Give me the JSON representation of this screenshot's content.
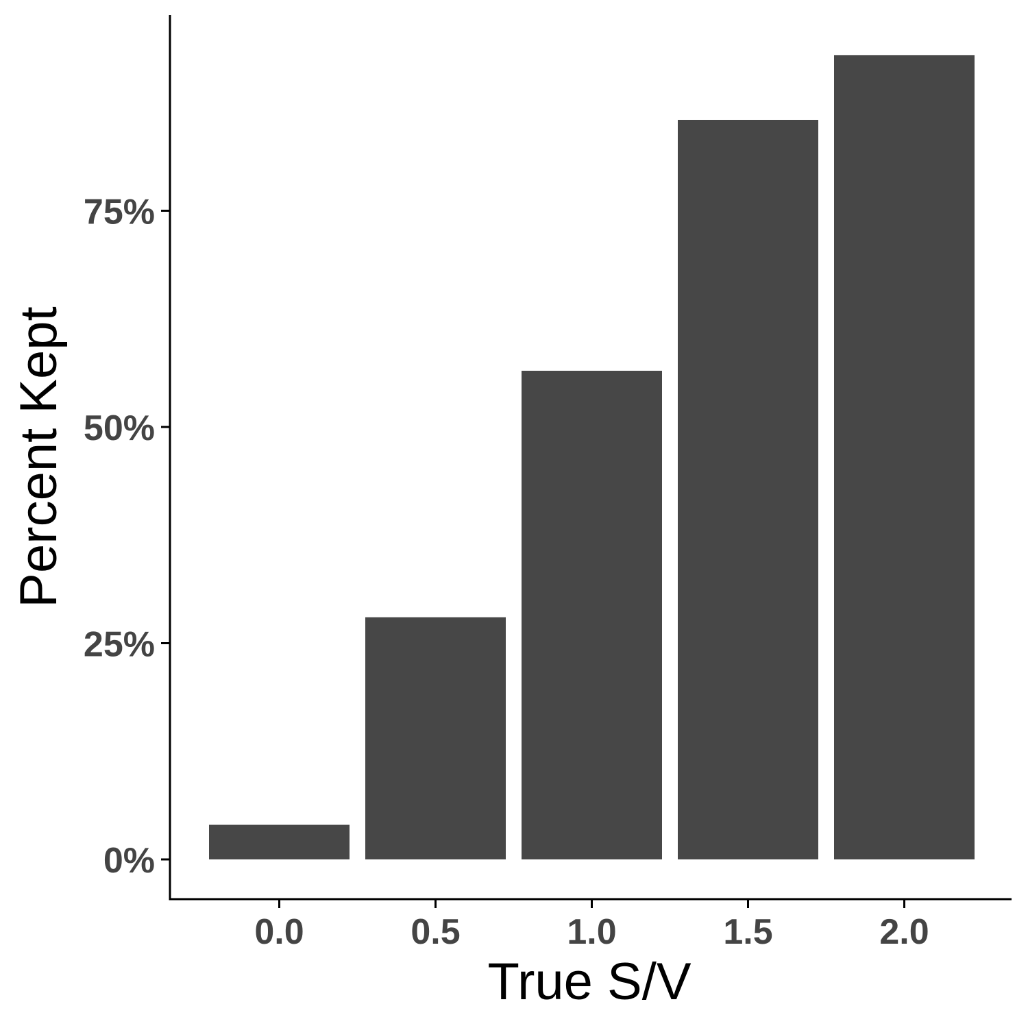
{
  "chart_data": {
    "type": "bar",
    "categories": [
      "0.0",
      "0.5",
      "1.0",
      "1.5",
      "2.0"
    ],
    "values": [
      4,
      28,
      56.5,
      85.5,
      93
    ],
    "title": "",
    "xlabel": "True S/V",
    "ylabel": "Percent Kept",
    "ylim": [
      -4.5,
      97.5
    ],
    "yticks": [
      0,
      25,
      50,
      75
    ],
    "ytick_labels": [
      "0%",
      "25%",
      "50%",
      "75%"
    ],
    "grid": false,
    "legend": "none",
    "bar_color": "#474747",
    "axis_color": "#000000",
    "tick_label_color": "#444444"
  }
}
